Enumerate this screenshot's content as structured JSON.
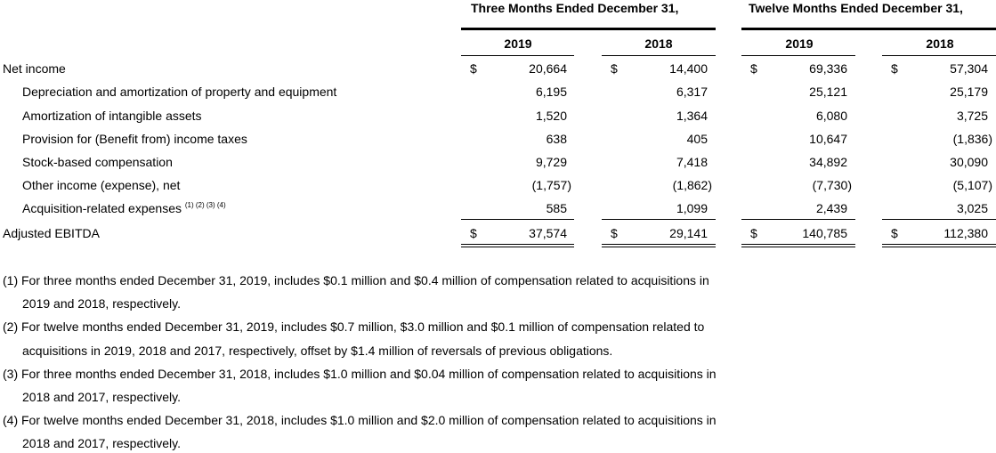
{
  "headers": {
    "three_months": "Three Months Ended December 31,",
    "twelve_months": "Twelve Months Ended December 31,",
    "years": [
      "2019",
      "2018",
      "2019",
      "2018"
    ]
  },
  "currency": "$",
  "rows": [
    {
      "label": "Net income",
      "values": [
        "20,664",
        "14,400",
        "69,336",
        "57,304"
      ]
    },
    {
      "label": "Depreciation and amortization of property and equipment",
      "values": [
        "6,195",
        "6,317",
        "25,121",
        "25,179"
      ]
    },
    {
      "label": "Amortization of intangible assets",
      "values": [
        "1,520",
        "1,364",
        "6,080",
        "3,725"
      ]
    },
    {
      "label": "Provision for (Benefit from) income taxes",
      "values": [
        "638",
        "405",
        "10,647",
        "(1,836)"
      ]
    },
    {
      "label": "Stock-based compensation",
      "values": [
        "9,729",
        "7,418",
        "34,892",
        "30,090"
      ]
    },
    {
      "label": "Other income (expense), net",
      "values": [
        "(1,757)",
        "(1,862)",
        "(7,730)",
        "(5,107)"
      ]
    },
    {
      "label": "Acquisition-related expenses",
      "footnote_refs": "(1) (2) (3) (4)",
      "values": [
        "585",
        "1,099",
        "2,439",
        "3,025"
      ]
    },
    {
      "label": "Adjusted EBITDA",
      "values": [
        "37,574",
        "29,141",
        "140,785",
        "112,380"
      ]
    }
  ],
  "footnotes": [
    {
      "line1": "(1) For three months ended December 31, 2019, includes $0.1 million and $0.4 million of compensation related to acquisitions in",
      "line2": "2019 and 2018, respectively."
    },
    {
      "line1": "(2) For twelve months ended December 31, 2019, includes $0.7 million, $3.0 million and $0.1 million of compensation related to",
      "line2": "acquisitions in 2019, 2018 and 2017, respectively, offset by $1.4 million of reversals of previous obligations."
    },
    {
      "line1": "(3) For three months ended December 31, 2018, includes $1.0 million and $0.04 million of compensation related to acquisitions in",
      "line2": "2018 and 2017, respectively."
    },
    {
      "line1": "(4) For twelve months ended December 31, 2018, includes $1.0 million and $2.0 million of compensation related to acquisitions in",
      "line2": "2018 and 2017, respectively."
    }
  ]
}
